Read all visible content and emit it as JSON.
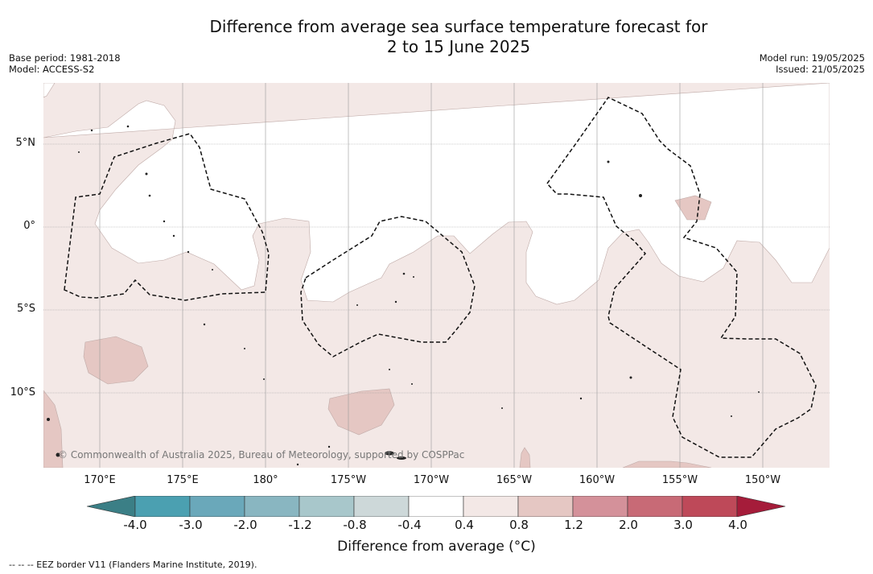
{
  "title": {
    "line1": "Difference from average sea surface temperature forecast for",
    "line2": "2 to 15 June 2025"
  },
  "meta_left": {
    "base_period": "Base period: 1981-2018",
    "model": "Model: ACCESS-S2"
  },
  "meta_right": {
    "model_run": "Model run: 19/05/2025",
    "issued": "Issued: 21/05/2025"
  },
  "map": {
    "land_color": "#ffffff",
    "ocean_color": "#f3e8e6",
    "anomaly_colors": {
      "0.4_to_0.8": "#f3e8e6",
      "0.8_to_1.2": "#e5c7c3"
    },
    "lat_labels": [
      "5°N",
      "0°",
      "5°S",
      "10°S"
    ],
    "lon_labels": [
      "170°E",
      "175°E",
      "180°",
      "175°W",
      "170°W",
      "165°W",
      "160°W",
      "155°W",
      "150°W"
    ],
    "copyright": "© Commonwealth of Australia 2025, Bureau of Meteorology, supported by COSPPac"
  },
  "colorbar": {
    "ticks": [
      "-4.0",
      "-3.0",
      "-2.0",
      "-1.2",
      "-0.8",
      "-0.4",
      "0.4",
      "0.8",
      "1.2",
      "2.0",
      "3.0",
      "4.0"
    ],
    "colors": [
      "#3b7f86",
      "#4ba0b1",
      "#6aa8ba",
      "#89b6c1",
      "#a8c7cb",
      "#cdd8d9",
      "#ffffff",
      "#f3e8e6",
      "#e5c7c3",
      "#d4919a",
      "#c86a76",
      "#be4959",
      "#a51c3a"
    ],
    "label": "Difference from average (°C)"
  },
  "footnote": "--  --  -- EEZ border V11 (Flanders Marine Institute, 2019)."
}
